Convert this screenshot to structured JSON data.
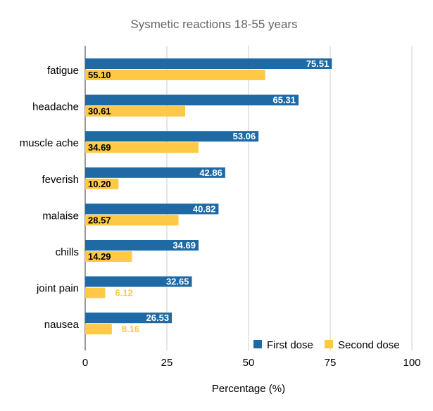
{
  "chart_data": {
    "type": "bar",
    "orientation": "horizontal",
    "title": "Sysmetic reactions 18-55 years",
    "xlabel": "Percentage (%)",
    "ylabel": "",
    "xlim": [
      0,
      100
    ],
    "xticks": [
      "0",
      "25",
      "50",
      "75",
      "100"
    ],
    "grid": true,
    "legend_position": "bottom-right",
    "categories": [
      "fatigue",
      "headache",
      "muscle ache",
      "feverish",
      "malaise",
      "chills",
      "joint pain",
      "nausea"
    ],
    "series": [
      {
        "name": "First dose",
        "color": "#1f6aa5",
        "values": [
          75.51,
          65.31,
          53.06,
          42.86,
          40.82,
          34.69,
          32.65,
          26.53
        ],
        "labels": [
          "75.51",
          "65.31",
          "53.06",
          "42.86",
          "40.82",
          "34.69",
          "32.65",
          "26.53"
        ]
      },
      {
        "name": "Second dose",
        "color": "#ffc845",
        "values": [
          55.1,
          30.61,
          34.69,
          10.2,
          28.57,
          14.29,
          6.12,
          8.16
        ],
        "labels": [
          "55.10",
          "30.61",
          "34.69",
          "10.20",
          "28.57",
          "14.29",
          "6.12",
          "8.16"
        ]
      }
    ]
  }
}
